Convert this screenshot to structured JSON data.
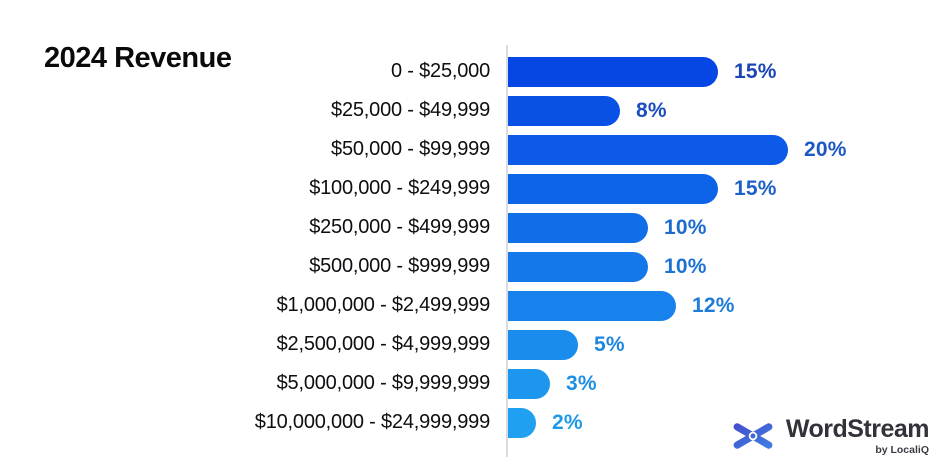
{
  "title": "2024 Revenue",
  "chart_data": {
    "type": "bar",
    "orientation": "horizontal",
    "title": "2024 Revenue",
    "xlabel": "",
    "ylabel": "",
    "xlim": [
      0,
      20
    ],
    "grid": false,
    "legend": false,
    "value_suffix": "%",
    "categories": [
      "0 - $25,000",
      "$25,000 - $49,999",
      "$50,000 - $99,999",
      "$100,000 - $249,999",
      "$250,000 - $499,999",
      "$500,000 - $999,999",
      "$1,000,000 - $2,499,999",
      "$2,500,000 - $4,999,999",
      "$5,000,000 - $9,999,999",
      "$10,000,000 - $24,999,999"
    ],
    "values": [
      15,
      8,
      20,
      15,
      10,
      10,
      12,
      5,
      3,
      2
    ],
    "value_labels": [
      "15%",
      "8%",
      "20%",
      "15%",
      "10%",
      "10%",
      "12%",
      "5%",
      "3%",
      "2%"
    ],
    "bar_color_start": "#0646E4",
    "bar_color_end": "#1FA0F0",
    "value_label_color_start": "#1C45B8",
    "value_label_color_end": "#1E98E8",
    "axis_line_color": "#D9DCE1",
    "category_label_color": "#0E0E12"
  },
  "branding": {
    "logo_text": "WordStream",
    "logo_subtext": "by LocaliQ",
    "mark_color_start": "#4353CE",
    "mark_color_end": "#3F7BE0",
    "text_color": "#32323A"
  }
}
